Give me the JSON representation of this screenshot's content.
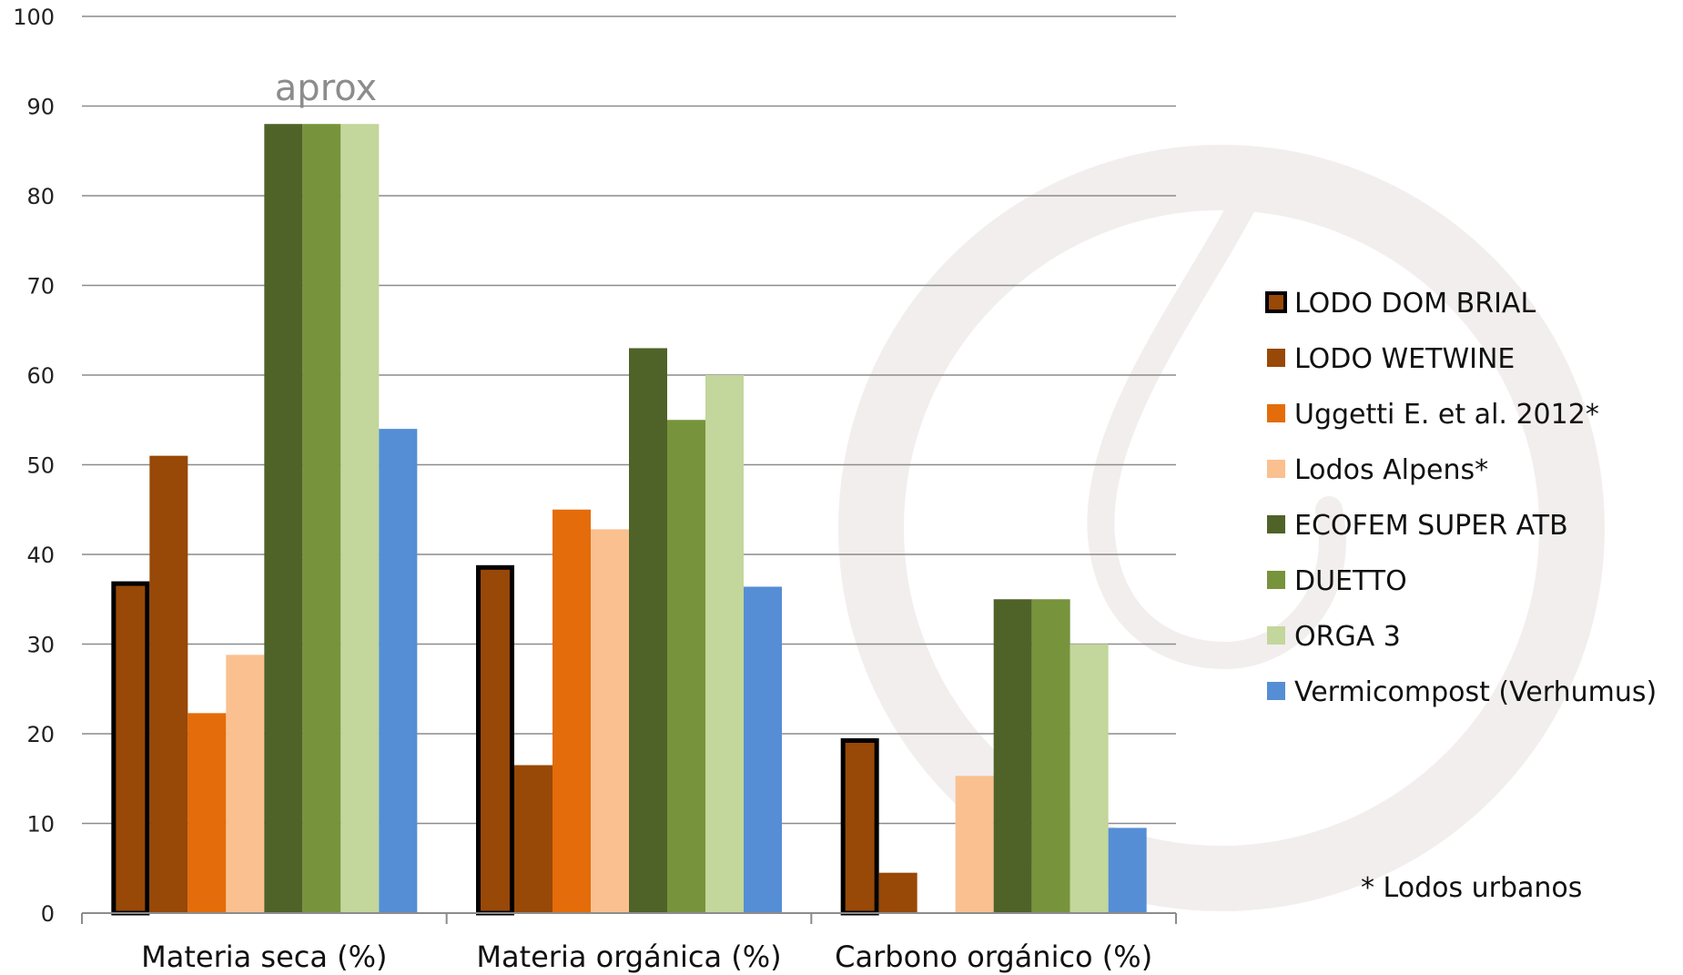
{
  "chart_data": {
    "type": "bar",
    "categories": [
      "Materia seca (%)",
      "Materia orgánica (%)",
      "Carbono orgánico (%)"
    ],
    "ylim": [
      0,
      100
    ],
    "yticks": [
      0,
      10,
      20,
      30,
      40,
      50,
      60,
      70,
      80,
      90,
      100
    ],
    "grid": true,
    "legend_position": "right",
    "series": [
      {
        "name": "LODO DOM BRIAL",
        "color": "#984807",
        "highlight": true,
        "values": [
          37,
          38.8,
          19.5
        ]
      },
      {
        "name": "LODO WETWINE",
        "color": "#984807",
        "highlight": false,
        "values": [
          51,
          16.5,
          4.5
        ]
      },
      {
        "name": "Uggetti E. et al. 2012*",
        "color": "#E46C0A",
        "highlight": false,
        "values": [
          22.3,
          45,
          null
        ]
      },
      {
        "name": "Lodos Alpens*",
        "color": "#FAC090",
        "highlight": false,
        "values": [
          28.8,
          42.8,
          15.3
        ]
      },
      {
        "name": "ECOFEM SUPER ATB",
        "color": "#4F6228",
        "highlight": false,
        "values": [
          88,
          63,
          35
        ]
      },
      {
        "name": "DUETTO",
        "color": "#77933C",
        "highlight": false,
        "values": [
          88,
          55,
          35
        ]
      },
      {
        "name": "ORGA 3",
        "color": "#C3D69B",
        "highlight": false,
        "values": [
          88,
          60,
          30
        ]
      },
      {
        "name": "Vermicompost (Verhumus)",
        "color": "#558ED5",
        "highlight": false,
        "values": [
          54,
          36.4,
          9.5
        ]
      }
    ],
    "annotations": [
      {
        "text": "aprox",
        "color": "#8c8c8c"
      }
    ],
    "note": "* Lodos urbanos"
  }
}
